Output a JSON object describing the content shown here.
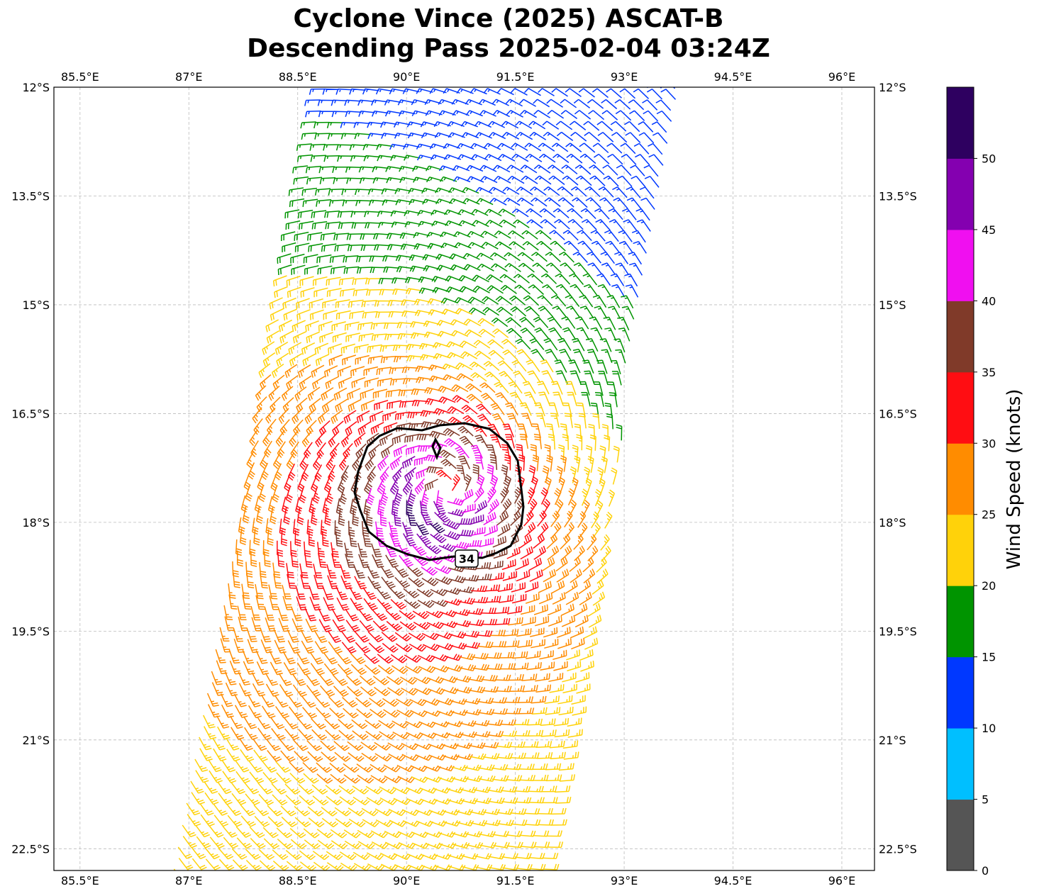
{
  "title": {
    "line1": "Cyclone Vince (2025) ASCAT-B",
    "line2": "Descending Pass 2025-02-04 03:24Z"
  },
  "map": {
    "lon_ticks": [
      "85.5°E",
      "87°E",
      "88.5°E",
      "90°E",
      "91.5°E",
      "93°E",
      "94.5°E",
      "96°E"
    ],
    "lon_values": [
      85.5,
      87,
      88.5,
      90,
      91.5,
      93,
      94.5,
      96
    ],
    "lat_ticks": [
      "12°S",
      "13.5°S",
      "15°S",
      "16.5°S",
      "18°S",
      "19.5°S",
      "21°S",
      "22.5°S"
    ],
    "lat_values": [
      -12,
      -13.5,
      -15,
      -16.5,
      -18,
      -19.5,
      -21,
      -22.5
    ],
    "extent": {
      "lon": [
        85.14,
        96.45
      ],
      "lat": [
        -12,
        -22.8
      ]
    },
    "gridlines": true,
    "contour_label": "34"
  },
  "colorbar": {
    "label": "Wind Speed (knots)",
    "bounds": [
      0,
      5,
      10,
      15,
      20,
      25,
      30,
      35,
      40,
      45,
      50,
      55
    ],
    "tick_labels": [
      "0",
      "5",
      "10",
      "15",
      "20",
      "25",
      "30",
      "35",
      "40",
      "45",
      "50"
    ],
    "colors": [
      "#555555",
      "#00bfff",
      "#0038ff",
      "#009400",
      "#ffd20a",
      "#ff8c00",
      "#ff0d12",
      "#803a29",
      "#f00ff0",
      "#8400b0",
      "#2e0060"
    ]
  }
}
